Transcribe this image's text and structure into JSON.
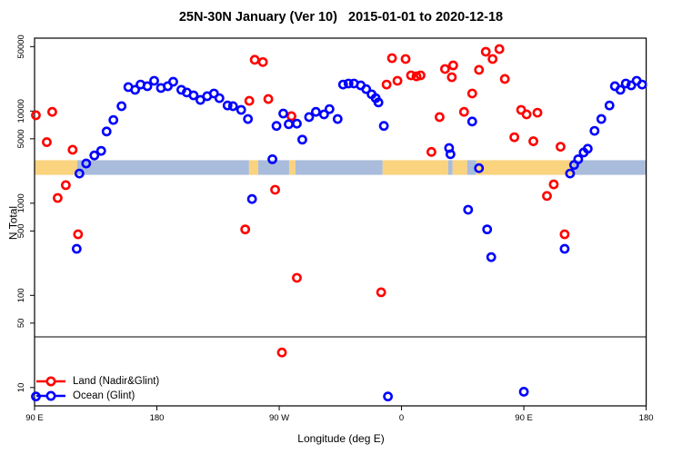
{
  "title": "25N-30N January (Ver 10)   2015-01-01 to 2020-12-18",
  "colors": {
    "land_series": "#FF0000",
    "ocean_series": "#0000FF",
    "band_land": "#FAD37F",
    "band_ocean": "#A9BCDB",
    "frame": "#000000",
    "background": "#FFFFFF"
  },
  "chart_data": {
    "type": "scatter",
    "title": "25N-30N January (Ver 10)   2015-01-01 to 2020-12-18",
    "xlabel": "Longitude (deg E)",
    "ylabel": "N Total",
    "x_axis": {
      "range": [
        90,
        540
      ],
      "note": "longitude wraps: 90E to 180, 90W, 0, 90E, 180",
      "ticks": [
        {
          "lon": 90,
          "label": "90 E"
        },
        {
          "lon": 180,
          "label": "180"
        },
        {
          "lon": 270,
          "label": "90 W"
        },
        {
          "lon": 360,
          "label": "0"
        },
        {
          "lon": 450,
          "label": "90 E"
        },
        {
          "lon": 540,
          "label": "180"
        }
      ]
    },
    "y_axis": {
      "scale": "log",
      "range": [
        6.3,
        62000
      ],
      "ticks": [
        50000,
        10000,
        5000,
        1000,
        500,
        100,
        50,
        10
      ]
    },
    "ref_line_n": 35.5,
    "surface_band": {
      "n_range": [
        2030,
        2930
      ],
      "segments": [
        {
          "from": 90,
          "to": 121.4,
          "surface": "land"
        },
        {
          "from": 121.4,
          "to": 247.8,
          "surface": "ocean"
        },
        {
          "from": 247.8,
          "to": 254.5,
          "surface": "land"
        },
        {
          "from": 254.5,
          "to": 277.3,
          "surface": "ocean"
        },
        {
          "from": 277.3,
          "to": 282.0,
          "surface": "land"
        },
        {
          "from": 282.0,
          "to": 346.1,
          "surface": "ocean"
        },
        {
          "from": 346.1,
          "to": 394.3,
          "surface": "land"
        },
        {
          "from": 394.3,
          "to": 397.6,
          "surface": "ocean"
        },
        {
          "from": 397.6,
          "to": 408.3,
          "surface": "land"
        },
        {
          "from": 408.3,
          "to": 415.0,
          "surface": "ocean"
        },
        {
          "from": 415.0,
          "to": 485.9,
          "surface": "land"
        },
        {
          "from": 485.9,
          "to": 540.0,
          "surface": "ocean"
        }
      ]
    },
    "legend_position": "bottom-left",
    "series": [
      {
        "name": "Land (Nadir&Glint)",
        "color": "#FF0000",
        "points": [
          [
            91,
            9000
          ],
          [
            103,
            9800
          ],
          [
            99,
            4600
          ],
          [
            118,
            3800
          ],
          [
            113,
            1570
          ],
          [
            107,
            1140
          ],
          [
            122,
            460
          ],
          [
            252,
            36000
          ],
          [
            258,
            34000
          ],
          [
            248,
            12900
          ],
          [
            262,
            13500
          ],
          [
            279,
            8800
          ],
          [
            267,
            1400
          ],
          [
            245,
            520
          ],
          [
            283,
            155
          ],
          [
            272,
            24
          ],
          [
            345,
            108
          ],
          [
            353,
            37500
          ],
          [
            363,
            36700
          ],
          [
            349,
            19400
          ],
          [
            357,
            21300
          ],
          [
            367,
            24400
          ],
          [
            371,
            23800
          ],
          [
            374,
            24400
          ],
          [
            392,
            28600
          ],
          [
            398,
            31300
          ],
          [
            397,
            23300
          ],
          [
            388,
            8600
          ],
          [
            382,
            3600
          ],
          [
            406,
            9800
          ],
          [
            412,
            15500
          ],
          [
            417,
            28000
          ],
          [
            422,
            44000
          ],
          [
            432,
            47000
          ],
          [
            427,
            36700
          ],
          [
            436,
            22300
          ],
          [
            448,
            10300
          ],
          [
            452,
            9200
          ],
          [
            460,
            9600
          ],
          [
            443,
            5200
          ],
          [
            457,
            4700
          ],
          [
            477,
            4100
          ],
          [
            472,
            1600
          ],
          [
            467,
            1200
          ],
          [
            480,
            460
          ]
        ]
      },
      {
        "name": "Ocean (Glint)",
        "color": "#0000FF",
        "points": [
          [
            123,
            2100
          ],
          [
            128,
            2700
          ],
          [
            134,
            3300
          ],
          [
            139,
            3700
          ],
          [
            143,
            6000
          ],
          [
            148,
            8000
          ],
          [
            154,
            11300
          ],
          [
            159,
            18200
          ],
          [
            164,
            17000
          ],
          [
            168,
            19400
          ],
          [
            173,
            18600
          ],
          [
            178,
            21300
          ],
          [
            183,
            17800
          ],
          [
            188,
            18600
          ],
          [
            192,
            20800
          ],
          [
            198,
            17000
          ],
          [
            202,
            15900
          ],
          [
            207,
            14800
          ],
          [
            212,
            13200
          ],
          [
            217,
            14500
          ],
          [
            222,
            15500
          ],
          [
            226,
            13800
          ],
          [
            232,
            11500
          ],
          [
            236,
            11300
          ],
          [
            242,
            10300
          ],
          [
            247,
            8200
          ],
          [
            268,
            6900
          ],
          [
            273,
            9400
          ],
          [
            277,
            7200
          ],
          [
            283,
            7300
          ],
          [
            287,
            4900
          ],
          [
            292,
            8600
          ],
          [
            297,
            9800
          ],
          [
            303,
            9200
          ],
          [
            307,
            10500
          ],
          [
            313,
            8200
          ],
          [
            317,
            19400
          ],
          [
            321,
            19900
          ],
          [
            325,
            19900
          ],
          [
            330,
            19000
          ],
          [
            334,
            17300
          ],
          [
            338,
            15200
          ],
          [
            341,
            13800
          ],
          [
            343,
            12400
          ],
          [
            347,
            6900
          ],
          [
            265,
            3000
          ],
          [
            250,
            1110
          ],
          [
            121,
            320
          ],
          [
            91,
            8
          ],
          [
            350,
            8
          ],
          [
            450,
            9
          ],
          [
            409,
            850
          ],
          [
            423,
            520
          ],
          [
            426,
            260
          ],
          [
            417,
            2400
          ],
          [
            395,
            3970
          ],
          [
            396,
            3400
          ],
          [
            412,
            7700
          ],
          [
            480,
            320
          ],
          [
            494,
            3550
          ],
          [
            490,
            3000
          ],
          [
            487,
            2600
          ],
          [
            484,
            2100
          ],
          [
            497,
            3900
          ],
          [
            502,
            6100
          ],
          [
            507,
            8200
          ],
          [
            513,
            11500
          ],
          [
            517,
            18600
          ],
          [
            521,
            17000
          ],
          [
            525,
            19900
          ],
          [
            529,
            19000
          ],
          [
            533,
            21300
          ],
          [
            537,
            19400
          ]
        ]
      }
    ]
  }
}
